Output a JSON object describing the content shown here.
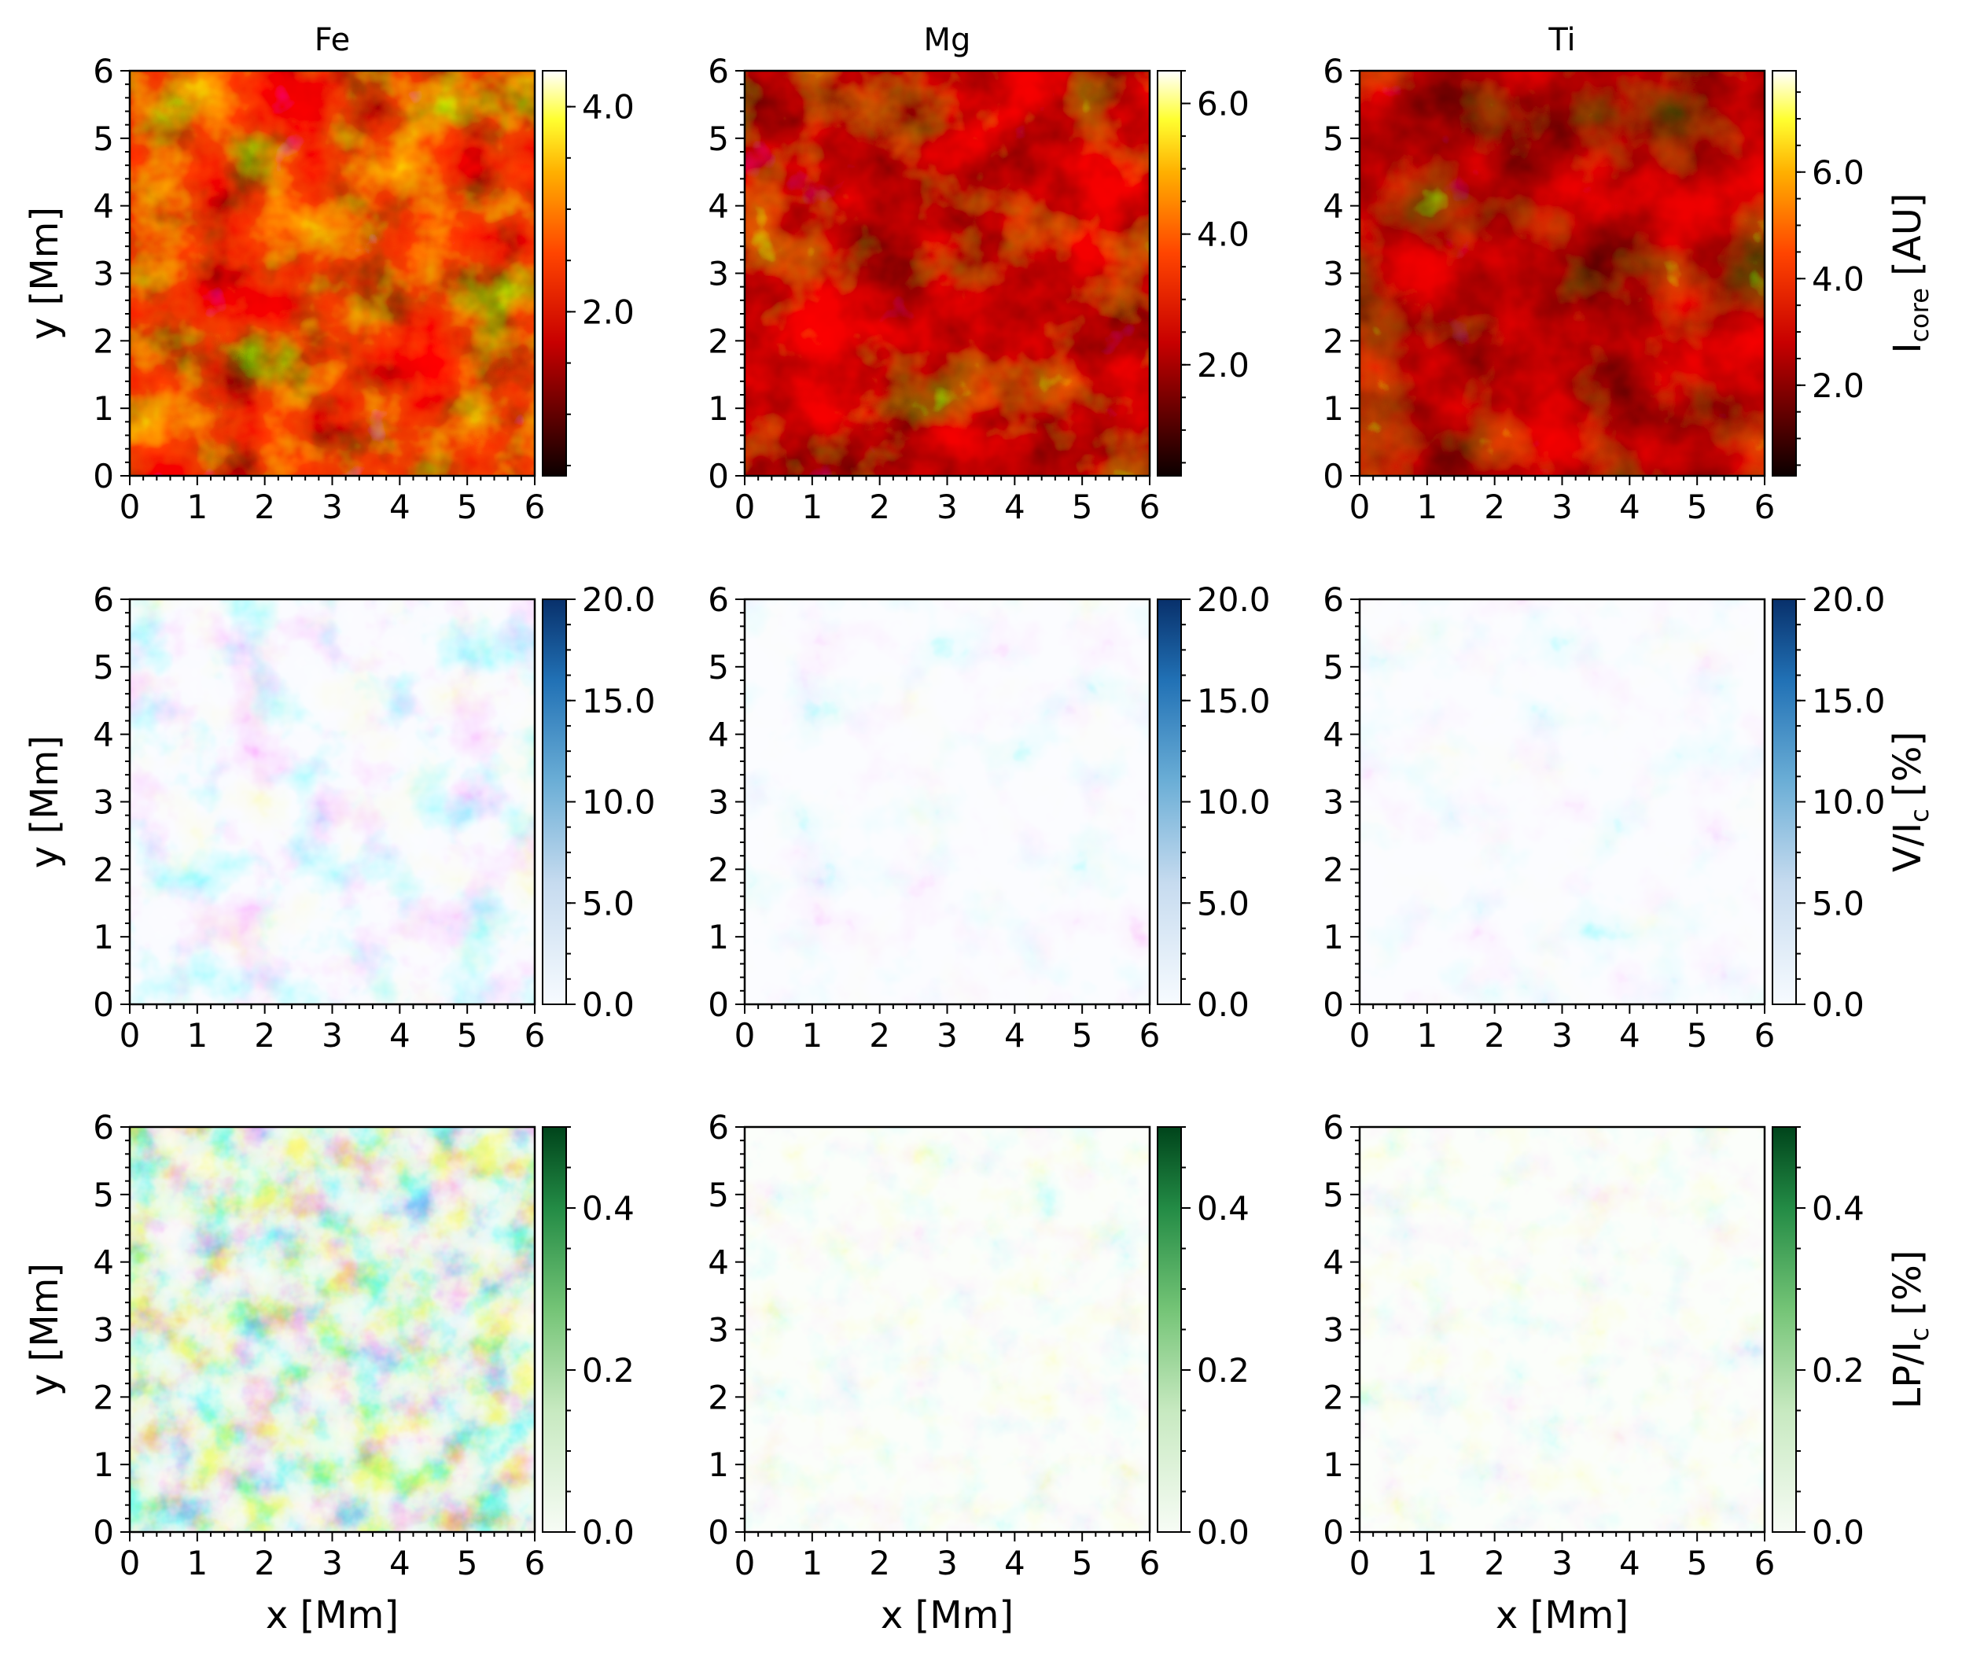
{
  "figure": {
    "column_titles": [
      "Fe",
      "Mg",
      "Ti"
    ],
    "x_label": "x [Mm]",
    "y_label": "y [Mm]"
  },
  "chart_data": [
    {
      "type": "heatmap",
      "row": "intensity",
      "title": "Fe",
      "xlabel": "",
      "ylabel": "y [Mm]",
      "x_range": [
        0,
        6
      ],
      "y_range": [
        0,
        6
      ],
      "x_ticks": [
        "0",
        "1",
        "2",
        "3",
        "4",
        "5",
        "6"
      ],
      "y_ticks": [
        "0",
        "1",
        "2",
        "3",
        "4",
        "5",
        "6"
      ],
      "colormap": "hot",
      "colorbar": {
        "range": [
          0.4,
          4.35
        ],
        "ticks": [
          "2.0",
          "4.0"
        ],
        "tick_values": [
          2.0,
          4.0
        ],
        "label": ""
      }
    },
    {
      "type": "heatmap",
      "row": "intensity",
      "title": "Mg",
      "xlabel": "",
      "ylabel": "",
      "x_range": [
        0,
        6
      ],
      "y_range": [
        0,
        6
      ],
      "x_ticks": [
        "0",
        "1",
        "2",
        "3",
        "4",
        "5",
        "6"
      ],
      "y_ticks": [
        "0",
        "1",
        "2",
        "3",
        "4",
        "5",
        "6"
      ],
      "colormap": "hot",
      "colorbar": {
        "range": [
          0.3,
          6.5
        ],
        "ticks": [
          "2.0",
          "4.0",
          "6.0"
        ],
        "tick_values": [
          2.0,
          4.0,
          6.0
        ],
        "label": ""
      }
    },
    {
      "type": "heatmap",
      "row": "intensity",
      "title": "Ti",
      "xlabel": "",
      "ylabel": "",
      "x_range": [
        0,
        6
      ],
      "y_range": [
        0,
        6
      ],
      "x_ticks": [
        "0",
        "1",
        "2",
        "3",
        "4",
        "5",
        "6"
      ],
      "y_ticks": [
        "0",
        "1",
        "2",
        "3",
        "4",
        "5",
        "6"
      ],
      "colormap": "hot",
      "colorbar": {
        "range": [
          0.3,
          7.9
        ],
        "ticks": [
          "2.0",
          "4.0",
          "6.0"
        ],
        "tick_values": [
          2.0,
          4.0,
          6.0
        ],
        "label_main": "I",
        "label_sub": "core",
        "label_rest": " [AU]"
      }
    },
    {
      "type": "heatmap",
      "row": "stokes-v",
      "title": "",
      "xlabel": "",
      "ylabel": "y [Mm]",
      "x_range": [
        0,
        6
      ],
      "y_range": [
        0,
        6
      ],
      "x_ticks": [
        "0",
        "1",
        "2",
        "3",
        "4",
        "5",
        "6"
      ],
      "y_ticks": [
        "0",
        "1",
        "2",
        "3",
        "4",
        "5",
        "6"
      ],
      "colormap": "Blues",
      "colorbar": {
        "range": [
          0,
          20
        ],
        "ticks": [
          "0.0",
          "5.0",
          "10.0",
          "15.0",
          "20.0"
        ],
        "tick_values": [
          0,
          5,
          10,
          15,
          20
        ],
        "label": ""
      }
    },
    {
      "type": "heatmap",
      "row": "stokes-v",
      "title": "",
      "xlabel": "",
      "ylabel": "",
      "x_range": [
        0,
        6
      ],
      "y_range": [
        0,
        6
      ],
      "x_ticks": [
        "0",
        "1",
        "2",
        "3",
        "4",
        "5",
        "6"
      ],
      "y_ticks": [
        "0",
        "1",
        "2",
        "3",
        "4",
        "5",
        "6"
      ],
      "colormap": "Blues",
      "colorbar": {
        "range": [
          0,
          20
        ],
        "ticks": [
          "0.0",
          "5.0",
          "10.0",
          "15.0",
          "20.0"
        ],
        "tick_values": [
          0,
          5,
          10,
          15,
          20
        ],
        "label": ""
      }
    },
    {
      "type": "heatmap",
      "row": "stokes-v",
      "title": "",
      "xlabel": "",
      "ylabel": "",
      "x_range": [
        0,
        6
      ],
      "y_range": [
        0,
        6
      ],
      "x_ticks": [
        "0",
        "1",
        "2",
        "3",
        "4",
        "5",
        "6"
      ],
      "y_ticks": [
        "0",
        "1",
        "2",
        "3",
        "4",
        "5",
        "6"
      ],
      "colormap": "Blues",
      "colorbar": {
        "range": [
          0,
          20
        ],
        "ticks": [
          "0.0",
          "5.0",
          "10.0",
          "15.0",
          "20.0"
        ],
        "tick_values": [
          0,
          5,
          10,
          15,
          20
        ],
        "label_main": "V/I",
        "label_sub": "c",
        "label_rest": " [%]"
      }
    },
    {
      "type": "heatmap",
      "row": "linear-polarization",
      "title": "",
      "xlabel": "x [Mm]",
      "ylabel": "y [Mm]",
      "x_range": [
        0,
        6
      ],
      "y_range": [
        0,
        6
      ],
      "x_ticks": [
        "0",
        "1",
        "2",
        "3",
        "4",
        "5",
        "6"
      ],
      "y_ticks": [
        "0",
        "1",
        "2",
        "3",
        "4",
        "5",
        "6"
      ],
      "colormap": "Greens",
      "colorbar": {
        "range": [
          0,
          0.5
        ],
        "ticks": [
          "0.0",
          "0.2",
          "0.4"
        ],
        "tick_values": [
          0,
          0.2,
          0.4
        ],
        "label": ""
      }
    },
    {
      "type": "heatmap",
      "row": "linear-polarization",
      "title": "",
      "xlabel": "x [Mm]",
      "ylabel": "",
      "x_range": [
        0,
        6
      ],
      "y_range": [
        0,
        6
      ],
      "x_ticks": [
        "0",
        "1",
        "2",
        "3",
        "4",
        "5",
        "6"
      ],
      "y_ticks": [
        "0",
        "1",
        "2",
        "3",
        "4",
        "5",
        "6"
      ],
      "colormap": "Greens",
      "colorbar": {
        "range": [
          0,
          0.5
        ],
        "ticks": [
          "0.0",
          "0.2",
          "0.4"
        ],
        "tick_values": [
          0,
          0.2,
          0.4
        ],
        "label": ""
      }
    },
    {
      "type": "heatmap",
      "row": "linear-polarization",
      "title": "",
      "xlabel": "x [Mm]",
      "ylabel": "",
      "x_range": [
        0,
        6
      ],
      "y_range": [
        0,
        6
      ],
      "x_ticks": [
        "0",
        "1",
        "2",
        "3",
        "4",
        "5",
        "6"
      ],
      "y_ticks": [
        "0",
        "1",
        "2",
        "3",
        "4",
        "5",
        "6"
      ],
      "colormap": "Greens",
      "colorbar": {
        "range": [
          0,
          0.5
        ],
        "ticks": [
          "0.0",
          "0.2",
          "0.4"
        ],
        "tick_values": [
          0,
          0.2,
          0.4
        ],
        "label_main": "LP/I",
        "label_sub": "c",
        "label_rest": " [%]"
      }
    }
  ]
}
